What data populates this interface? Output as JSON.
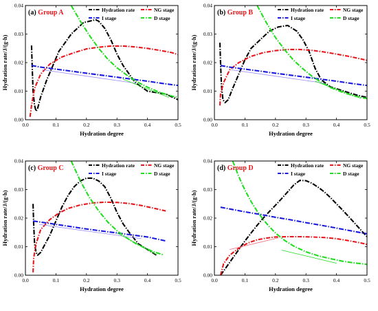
{
  "figure": {
    "colors": {
      "hydration_rate": "#000000",
      "ng_stage": "#e8161b",
      "i_stage": "#1a1adf",
      "d_stage": "#22dd22",
      "group_title": "#e8161b",
      "annotation_blue": "#9a8cf5",
      "annotation_green": "#22dd22",
      "annotation_red": "#f26d7d"
    }
  },
  "chart_data": [
    {
      "type": "line",
      "label": "(a)",
      "group": "Group A",
      "xlabel": "Hydration degree",
      "ylabel": "Hydration rate/J/(g·h)",
      "xlim": [
        0,
        0.5
      ],
      "ylim": [
        0,
        0.04
      ],
      "xticks": [
        "0.0",
        "0.1",
        "0.2",
        "0.3",
        "0.4",
        "0.5"
      ],
      "yticks": [
        "0.00",
        "0.01",
        "0.02",
        "0.03",
        "0.04"
      ],
      "legend_position": "top",
      "series": [
        {
          "key": "hydration_rate",
          "name": "Hydration rate",
          "x": [
            0.02,
            0.022,
            0.025,
            0.03,
            0.035,
            0.04,
            0.05,
            0.07,
            0.09,
            0.11,
            0.13,
            0.15,
            0.17,
            0.19,
            0.21,
            0.23,
            0.24,
            0.26,
            0.28,
            0.3,
            0.32,
            0.34,
            0.36,
            0.38,
            0.4,
            0.43,
            0.46,
            0.48,
            0.5
          ],
          "values": [
            0.026,
            0.019,
            0.01,
            0.005,
            0.003,
            0.004,
            0.008,
            0.014,
            0.019,
            0.024,
            0.027,
            0.03,
            0.032,
            0.034,
            0.0345,
            0.035,
            0.0345,
            0.032,
            0.028,
            0.023,
            0.019,
            0.016,
            0.013,
            0.0115,
            0.01,
            0.0095,
            0.009,
            0.008,
            0.007
          ]
        },
        {
          "key": "ng_stage",
          "name": "NG stage",
          "x": [
            0.015,
            0.02,
            0.03,
            0.05,
            0.08,
            0.12,
            0.16,
            0.2,
            0.24,
            0.28,
            0.32,
            0.36,
            0.4,
            0.44,
            0.48,
            0.5
          ],
          "values": [
            0.001,
            0.005,
            0.011,
            0.016,
            0.0195,
            0.022,
            0.0235,
            0.0248,
            0.0254,
            0.0258,
            0.0258,
            0.0255,
            0.025,
            0.0243,
            0.0235,
            0.0228
          ]
        },
        {
          "key": "i_stage",
          "name": "I stage",
          "x": [
            0.02,
            0.05,
            0.1,
            0.15,
            0.2,
            0.25,
            0.3,
            0.35,
            0.4,
            0.45,
            0.5
          ],
          "values": [
            0.019,
            0.0184,
            0.0177,
            0.017,
            0.0163,
            0.0156,
            0.0149,
            0.0142,
            0.0135,
            0.0127,
            0.012
          ]
        },
        {
          "key": "d_stage",
          "name": "D stage",
          "x": [
            0.15,
            0.18,
            0.21,
            0.24,
            0.27,
            0.3,
            0.33,
            0.36,
            0.4,
            0.44,
            0.48,
            0.5
          ],
          "values": [
            0.04,
            0.0345,
            0.0295,
            0.025,
            0.0212,
            0.0182,
            0.0158,
            0.0136,
            0.0114,
            0.0096,
            0.0083,
            0.0078
          ]
        }
      ],
      "annotations": [
        {
          "color_key": "annotation_blue",
          "x": [
            0.055,
            0.36
          ],
          "values": [
            0.0175,
            0.0128
          ]
        },
        {
          "color_key": "annotation_green",
          "x": [
            0.32,
            0.47
          ],
          "values": [
            0.0142,
            0.0078
          ]
        }
      ]
    },
    {
      "type": "line",
      "label": "(b)",
      "group": "Group B",
      "xlabel": "Hydration degree",
      "ylabel": "Hydration rate/J/(g·h)",
      "xlim": [
        0,
        0.5
      ],
      "ylim": [
        0,
        0.04
      ],
      "xticks": [
        "0.0",
        "0.1",
        "0.2",
        "0.3",
        "0.4",
        "0.5"
      ],
      "yticks": [
        "0.00",
        "0.01",
        "0.02",
        "0.03",
        "0.04"
      ],
      "legend_position": "top",
      "series": [
        {
          "key": "hydration_rate",
          "name": "Hydration rate",
          "x": [
            0.018,
            0.02,
            0.023,
            0.028,
            0.035,
            0.045,
            0.06,
            0.08,
            0.1,
            0.12,
            0.15,
            0.18,
            0.21,
            0.24,
            0.27,
            0.29,
            0.31,
            0.33,
            0.35,
            0.38,
            0.41,
            0.44,
            0.47,
            0.5
          ],
          "values": [
            0.027,
            0.02,
            0.012,
            0.007,
            0.006,
            0.007,
            0.011,
            0.016,
            0.021,
            0.025,
            0.028,
            0.031,
            0.0325,
            0.033,
            0.031,
            0.028,
            0.024,
            0.018,
            0.014,
            0.0115,
            0.0105,
            0.0095,
            0.0085,
            0.0078
          ]
        },
        {
          "key": "ng_stage",
          "name": "NG stage",
          "x": [
            0.018,
            0.02,
            0.03,
            0.05,
            0.08,
            0.12,
            0.16,
            0.2,
            0.24,
            0.28,
            0.32,
            0.36,
            0.4,
            0.44,
            0.48,
            0.5
          ],
          "values": [
            0.005,
            0.009,
            0.013,
            0.0175,
            0.02,
            0.0222,
            0.0235,
            0.0242,
            0.0246,
            0.0246,
            0.0243,
            0.0237,
            0.023,
            0.0222,
            0.0213,
            0.0208
          ]
        },
        {
          "key": "i_stage",
          "name": "I stage",
          "x": [
            0.02,
            0.05,
            0.1,
            0.15,
            0.2,
            0.25,
            0.3,
            0.35,
            0.4,
            0.45,
            0.5
          ],
          "values": [
            0.019,
            0.0184,
            0.0177,
            0.017,
            0.0163,
            0.0156,
            0.0149,
            0.0142,
            0.0135,
            0.0127,
            0.012
          ]
        },
        {
          "key": "d_stage",
          "name": "D stage",
          "x": [
            0.14,
            0.17,
            0.2,
            0.23,
            0.26,
            0.29,
            0.32,
            0.35,
            0.38,
            0.42,
            0.46,
            0.5
          ],
          "values": [
            0.04,
            0.034,
            0.0288,
            0.0245,
            0.0208,
            0.0178,
            0.0152,
            0.0131,
            0.0113,
            0.0096,
            0.0083,
            0.0074
          ]
        }
      ],
      "annotations": [
        {
          "color_key": "annotation_blue",
          "x": [
            0.055,
            0.36
          ],
          "values": [
            0.0175,
            0.0128
          ]
        },
        {
          "color_key": "annotation_green",
          "x": [
            0.33,
            0.48
          ],
          "values": [
            0.0135,
            0.0075
          ]
        }
      ]
    },
    {
      "type": "line",
      "label": "(c)",
      "group": "Group C",
      "xlabel": "Hydration degree",
      "ylabel": "Hydration rate/J/(g·h)",
      "xlim": [
        0,
        0.5
      ],
      "ylim": [
        0,
        0.04
      ],
      "xticks": [
        "0.0",
        "0.1",
        "0.2",
        "0.3",
        "0.4",
        "0.5"
      ],
      "yticks": [
        "0.00",
        "0.01",
        "0.02",
        "0.03",
        "0.04"
      ],
      "legend_position": "top",
      "series": [
        {
          "key": "hydration_rate",
          "name": "Hydration rate",
          "x": [
            0.025,
            0.027,
            0.03,
            0.035,
            0.04,
            0.05,
            0.06,
            0.08,
            0.1,
            0.12,
            0.14,
            0.16,
            0.18,
            0.2,
            0.22,
            0.24,
            0.26,
            0.28,
            0.3,
            0.32,
            0.34,
            0.37,
            0.4,
            0.43
          ],
          "values": [
            0.025,
            0.018,
            0.011,
            0.008,
            0.007,
            0.008,
            0.01,
            0.014,
            0.019,
            0.024,
            0.028,
            0.031,
            0.033,
            0.034,
            0.034,
            0.033,
            0.031,
            0.027,
            0.022,
            0.018,
            0.015,
            0.011,
            0.009,
            0.007
          ]
        },
        {
          "key": "ng_stage",
          "name": "NG stage",
          "x": [
            0.025,
            0.027,
            0.035,
            0.05,
            0.08,
            0.11,
            0.14,
            0.18,
            0.22,
            0.26,
            0.3,
            0.34,
            0.38,
            0.42,
            0.46
          ],
          "values": [
            0.001,
            0.006,
            0.011,
            0.016,
            0.0195,
            0.0218,
            0.0234,
            0.0246,
            0.0253,
            0.0256,
            0.0255,
            0.0251,
            0.0244,
            0.0235,
            0.0225
          ]
        },
        {
          "key": "i_stage",
          "name": "I stage",
          "x": [
            0.025,
            0.05,
            0.1,
            0.15,
            0.2,
            0.25,
            0.3,
            0.35,
            0.4,
            0.46
          ],
          "values": [
            0.019,
            0.0186,
            0.0178,
            0.017,
            0.0162,
            0.0155,
            0.0148,
            0.0141,
            0.0134,
            0.012
          ]
        },
        {
          "key": "d_stage",
          "name": "D stage",
          "x": [
            0.15,
            0.18,
            0.21,
            0.24,
            0.27,
            0.3,
            0.33,
            0.36,
            0.39,
            0.42,
            0.45
          ],
          "values": [
            0.04,
            0.033,
            0.0272,
            0.0225,
            0.0186,
            0.0156,
            0.0132,
            0.0112,
            0.0096,
            0.0082,
            0.0072
          ]
        }
      ],
      "annotations": [
        {
          "color_key": "annotation_blue",
          "x": [
            0.045,
            0.38
          ],
          "values": [
            0.0178,
            0.0128
          ]
        },
        {
          "color_key": "annotation_green",
          "x": [
            0.3,
            0.43
          ],
          "values": [
            0.0148,
            0.0072
          ]
        }
      ]
    },
    {
      "type": "line",
      "label": "(d)",
      "group": "Group D",
      "xlabel": "Hydration degree",
      "ylabel": "Hydration rate/J/(g·h)",
      "xlim": [
        0,
        0.5
      ],
      "ylim": [
        0,
        0.04
      ],
      "xticks": [
        "0.0",
        "0.1",
        "0.2",
        "0.3",
        "0.4",
        "0.5"
      ],
      "yticks": [
        "0.00",
        "0.01",
        "0.02",
        "0.03",
        "0.04"
      ],
      "legend_position": "top",
      "series": [
        {
          "key": "hydration_rate",
          "name": "Hydration rate",
          "x": [
            0.02,
            0.04,
            0.06,
            0.08,
            0.1,
            0.12,
            0.14,
            0.16,
            0.18,
            0.2,
            0.22,
            0.24,
            0.26,
            0.28,
            0.3,
            0.32,
            0.34,
            0.36,
            0.38,
            0.4,
            0.42,
            0.44,
            0.46,
            0.48,
            0.5
          ],
          "values": [
            0.0,
            0.003,
            0.006,
            0.009,
            0.012,
            0.0148,
            0.0175,
            0.02,
            0.0223,
            0.0245,
            0.0268,
            0.0292,
            0.0316,
            0.0332,
            0.0331,
            0.0322,
            0.0308,
            0.0292,
            0.0272,
            0.025,
            0.0228,
            0.0205,
            0.0182,
            0.0158,
            0.0135
          ]
        },
        {
          "key": "ng_stage",
          "name": "NG stage",
          "x": [
            0.02,
            0.025,
            0.03,
            0.05,
            0.08,
            0.11,
            0.14,
            0.17,
            0.2,
            0.24,
            0.28,
            0.32,
            0.36,
            0.4,
            0.44,
            0.48,
            0.5
          ],
          "values": [
            0.0,
            0.002,
            0.004,
            0.007,
            0.0095,
            0.0113,
            0.0124,
            0.013,
            0.0134,
            0.0135,
            0.0135,
            0.0134,
            0.0132,
            0.0128,
            0.0121,
            0.0113,
            0.0108
          ]
        },
        {
          "key": "i_stage",
          "name": "I stage",
          "x": [
            0.02,
            0.05,
            0.1,
            0.15,
            0.2,
            0.25,
            0.3,
            0.35,
            0.4,
            0.45,
            0.5
          ],
          "values": [
            0.0238,
            0.0232,
            0.0222,
            0.0213,
            0.0203,
            0.0194,
            0.0184,
            0.0175,
            0.0165,
            0.0155,
            0.0145
          ]
        },
        {
          "key": "d_stage",
          "name": "D stage",
          "x": [
            0.06,
            0.08,
            0.1,
            0.12,
            0.14,
            0.16,
            0.18,
            0.2,
            0.23,
            0.26,
            0.3,
            0.34,
            0.38,
            0.42,
            0.46,
            0.5
          ],
          "values": [
            0.04,
            0.0345,
            0.0298,
            0.0258,
            0.0224,
            0.0195,
            0.017,
            0.0148,
            0.0122,
            0.0102,
            0.0082,
            0.0068,
            0.0058,
            0.0049,
            0.0043,
            0.0038
          ]
        }
      ],
      "annotations": [
        {
          "color_key": "annotation_red",
          "x": [
            0.05,
            0.21
          ],
          "values": [
            0.009,
            0.0131
          ]
        },
        {
          "color_key": "annotation_green",
          "x": [
            0.22,
            0.4
          ],
          "values": [
            0.0088,
            0.0042
          ]
        }
      ]
    }
  ]
}
